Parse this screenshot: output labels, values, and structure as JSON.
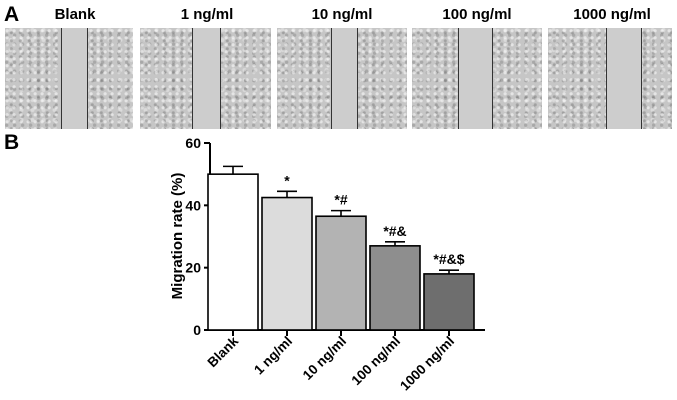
{
  "panels": {
    "a": "A",
    "b": "B"
  },
  "micrographs": [
    {
      "label": "Blank"
    },
    {
      "label": "1 ng/ml"
    },
    {
      "label": "10 ng/ml"
    },
    {
      "label": "100 ng/ml"
    },
    {
      "label": "1000 ng/ml"
    }
  ],
  "chart_data": {
    "type": "bar",
    "categories": [
      "Blank",
      "1 ng/ml",
      "10 ng/ml",
      "100 ng/ml",
      "1000 ng/ml"
    ],
    "values": [
      50,
      42.5,
      36.5,
      27,
      18
    ],
    "errors": [
      2.5,
      2,
      1.8,
      1.3,
      1.2
    ],
    "annotations": [
      "",
      "*",
      "*#",
      "*#&",
      "*#&$"
    ],
    "bar_colors": [
      "#ffffff",
      "#dcdcdc",
      "#b3b3b3",
      "#8e8e8e",
      "#6e6e6e"
    ],
    "ylabel": "Migration rate (%)",
    "xlabel": "",
    "ylim": [
      0,
      60
    ],
    "yticks": [
      0,
      20,
      40,
      60
    ],
    "grid": false
  }
}
